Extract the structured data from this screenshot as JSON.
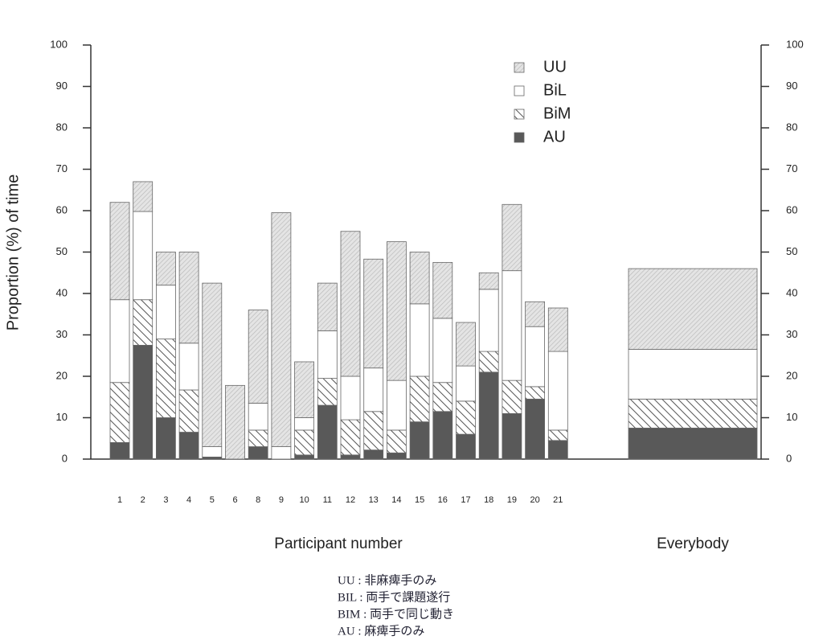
{
  "chart_data": {
    "type": "stacked_bar",
    "y_label": "Proportion (%) of time",
    "x_label": "Participant number",
    "categories": [
      "1",
      "2",
      "3",
      "4",
      "5",
      "6",
      "8",
      "9",
      "10",
      "11",
      "12",
      "13",
      "14",
      "15",
      "16",
      "17",
      "18",
      "19",
      "20",
      "21",
      "Everybody"
    ],
    "series": [
      {
        "name": "AU",
        "color": "#595959",
        "pattern": "solid",
        "values": [
          4,
          27.5,
          10,
          6.5,
          0.5,
          0,
          3,
          0,
          1,
          13,
          1,
          2.2,
          1.5,
          9,
          11.5,
          6,
          21,
          11,
          14.5,
          4.5,
          7.5
        ]
      },
      {
        "name": "BiM",
        "color": "#555555",
        "pattern": "diagonal",
        "values": [
          14.5,
          11,
          19,
          10.2,
          0,
          0,
          4,
          0,
          6,
          6.5,
          8.5,
          9.3,
          5.5,
          11,
          7,
          8,
          5,
          8,
          3,
          2.5,
          7
        ]
      },
      {
        "name": "BiL",
        "color": "#ffffff",
        "pattern": "solid",
        "values": [
          20,
          21.3,
          13,
          11.3,
          2.5,
          0,
          6.5,
          3,
          3,
          11.5,
          10.5,
          10.5,
          12,
          17.5,
          15.5,
          8.5,
          15,
          26.5,
          14.5,
          19,
          12
        ]
      },
      {
        "name": "UU",
        "color": "#9a9a9a",
        "pattern": "fine-hatch",
        "values": [
          23.5,
          7.2,
          8,
          22,
          39.5,
          17.8,
          22.5,
          56.5,
          13.5,
          11.5,
          35,
          26.3,
          33.5,
          12.5,
          13.5,
          10.5,
          4,
          16,
          6,
          10.5,
          19.5
        ]
      }
    ],
    "ylim": [
      0,
      100
    ],
    "yticks": [
      0,
      10,
      20,
      30,
      40,
      50,
      60,
      70,
      80,
      90,
      100
    ],
    "y2lim": [
      0,
      100
    ],
    "y2ticks": [
      0,
      10,
      20,
      30,
      40,
      50,
      60,
      70,
      80,
      90,
      100
    ],
    "legend": "top-right",
    "notes": [
      "UU : 非麻痺手のみ",
      "BIL : 両手で課題遂行",
      "BIM : 両手で同じ動き",
      "AU : 麻痺手のみ"
    ]
  }
}
